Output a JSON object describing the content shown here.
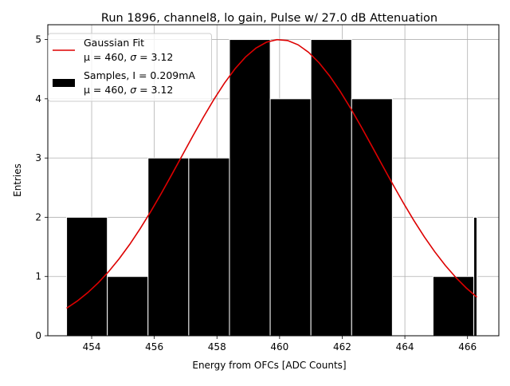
{
  "chart_data": {
    "type": "histogram",
    "title": "Run 1896, channel8, lo gain, Pulse w/ 27.0 dB Attenuation",
    "xlabel": "Energy from OFCs [ADC Counts]",
    "ylabel": "Entries",
    "xlim": [
      452.6,
      467.0
    ],
    "ylim": [
      0,
      5.25
    ],
    "xticks": [
      454,
      456,
      458,
      460,
      462,
      464,
      466
    ],
    "yticks": [
      0,
      1,
      2,
      3,
      4,
      5
    ],
    "grid": true,
    "bar_color": "#000000",
    "bar_edge_color": "#ffffff",
    "fit_color": "#dd0000",
    "bins": [
      {
        "start": 453.2,
        "end": 454.5,
        "count": 2
      },
      {
        "start": 454.5,
        "end": 455.8,
        "count": 1
      },
      {
        "start": 455.8,
        "end": 457.1,
        "count": 3
      },
      {
        "start": 457.1,
        "end": 458.4,
        "count": 3
      },
      {
        "start": 458.4,
        "end": 459.7,
        "count": 5
      },
      {
        "start": 459.7,
        "end": 461.0,
        "count": 4
      },
      {
        "start": 461.0,
        "end": 462.3,
        "count": 5
      },
      {
        "start": 462.3,
        "end": 463.6,
        "count": 4
      },
      {
        "start": 463.6,
        "end": 464.9,
        "count": 0
      },
      {
        "start": 464.9,
        "end": 466.2,
        "count": 1
      },
      {
        "start": 466.2,
        "end": 466.3,
        "count": 2
      }
    ],
    "fit": {
      "mu": 460,
      "sigma": 3.12,
      "amplitude": 5.0,
      "x_start": 453.2,
      "x_end": 466.3,
      "points": 40
    },
    "legend": {
      "position": "upper left",
      "entries": [
        {
          "kind": "line",
          "line1": "Gaussian Fit",
          "line2_prefix": "μ = 460, ",
          "line2_sigma": "σ",
          "line2_suffix": " = 3.12"
        },
        {
          "kind": "patch",
          "line1": "Samples, I = 0.209mA",
          "line2_prefix": "μ = 460, ",
          "line2_sigma": "σ",
          "line2_suffix": " = 3.12"
        }
      ]
    }
  }
}
